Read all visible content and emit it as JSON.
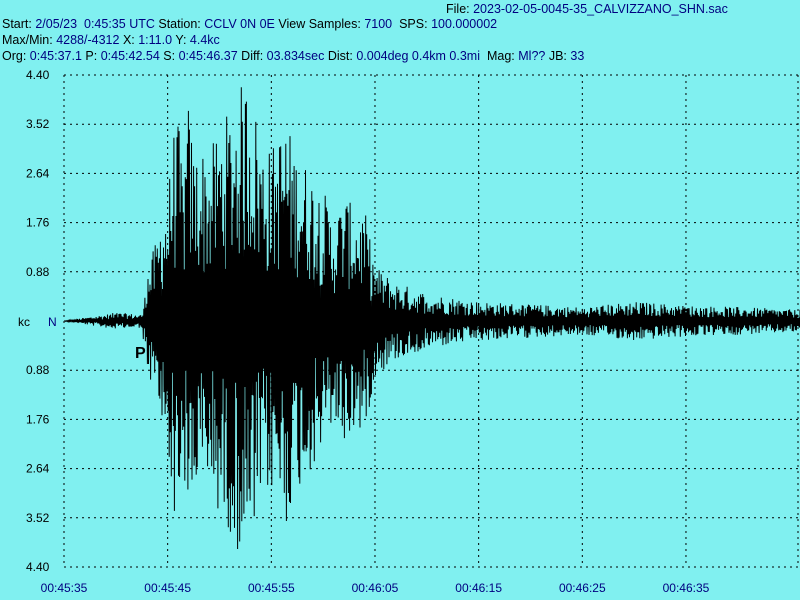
{
  "header": {
    "file_label": "File:",
    "file_value": "2023-02-05-0045-35_CALVIZZANO_SHN.sac",
    "start_label": "Start:",
    "start_value": "2/05/23  0:45:35 UTC",
    "station_label": "Station:",
    "station_value": "CCLV 0N 0E",
    "view_samples_label": "View Samples:",
    "view_samples_value": "7100",
    "sps_label": "SPS:",
    "sps_value": "100.000002",
    "maxmin_label": "Max/Min:",
    "maxmin_value": "4288/-4312",
    "x_label": "X:",
    "x_value": "1:11.0",
    "y_label": "Y:",
    "y_value": "4.4kc",
    "org_label": "Org:",
    "org_value": "0:45:37.1",
    "p_label": "P:",
    "p_value": "0:45:42.54",
    "s_label": "S:",
    "s_value": "0:45:46.37",
    "diff_label": "Diff:",
    "diff_value": "03.834sec",
    "dist_label": "Dist:",
    "dist_value": "0.004deg 0.4km 0.3mi",
    "mag_label": "Mag:",
    "mag_value": "Ml??",
    "jb_label": "JB:",
    "jb_value": "33"
  },
  "chart_data": {
    "type": "line",
    "ylabel": "kc",
    "channel_label": "N",
    "pick_label": "P",
    "pick_time": "00:45:42.54",
    "y_tick_labels": [
      "4.40",
      "3.52",
      "2.64",
      "1.76",
      "0.88",
      "0.88",
      "1.76",
      "2.64",
      "3.52",
      "4.40"
    ],
    "x_tick_labels": [
      "00:45:35",
      "00:45:45",
      "00:45:55",
      "00:46:05",
      "00:46:15",
      "00:46:25",
      "00:46:35"
    ],
    "ylim": [
      -4.4,
      4.4
    ],
    "yunit": "kc",
    "x_range_seconds": 71,
    "grid": true,
    "series": [
      {
        "values": [
          [
            0.0,
            0.0
          ],
          [
            5.0,
            0.15
          ],
          [
            7.5,
            -0.12
          ],
          [
            8.0,
            0.9
          ],
          [
            9.0,
            -1.5
          ],
          [
            9.5,
            2.1
          ],
          [
            10.0,
            -2.2
          ],
          [
            10.5,
            3.4
          ],
          [
            11.0,
            -3.6
          ],
          [
            11.5,
            2.7
          ],
          [
            12.0,
            -3.9
          ],
          [
            12.5,
            3.1
          ],
          [
            13.0,
            -3.2
          ],
          [
            14.0,
            3.0
          ],
          [
            15.0,
            -3.5
          ],
          [
            16.0,
            3.8
          ],
          [
            17.5,
            -4.4
          ],
          [
            18.0,
            4.3
          ],
          [
            19.0,
            -3.3
          ],
          [
            20.0,
            3.1
          ],
          [
            21.5,
            -3.7
          ],
          [
            22.0,
            3.2
          ],
          [
            23.5,
            -2.8
          ],
          [
            25.0,
            2.4
          ],
          [
            26.0,
            -1.8
          ],
          [
            27.0,
            2.3
          ],
          [
            28.0,
            -2.0
          ],
          [
            29.0,
            2.0
          ],
          [
            30.0,
            -1.0
          ],
          [
            32.0,
            0.7
          ],
          [
            35.0,
            -0.5
          ],
          [
            40.0,
            0.35
          ],
          [
            45.0,
            -0.3
          ],
          [
            50.0,
            0.25
          ],
          [
            55.0,
            -0.35
          ],
          [
            60.0,
            0.28
          ],
          [
            65.0,
            -0.25
          ],
          [
            71.0,
            0.2
          ]
        ]
      }
    ]
  }
}
